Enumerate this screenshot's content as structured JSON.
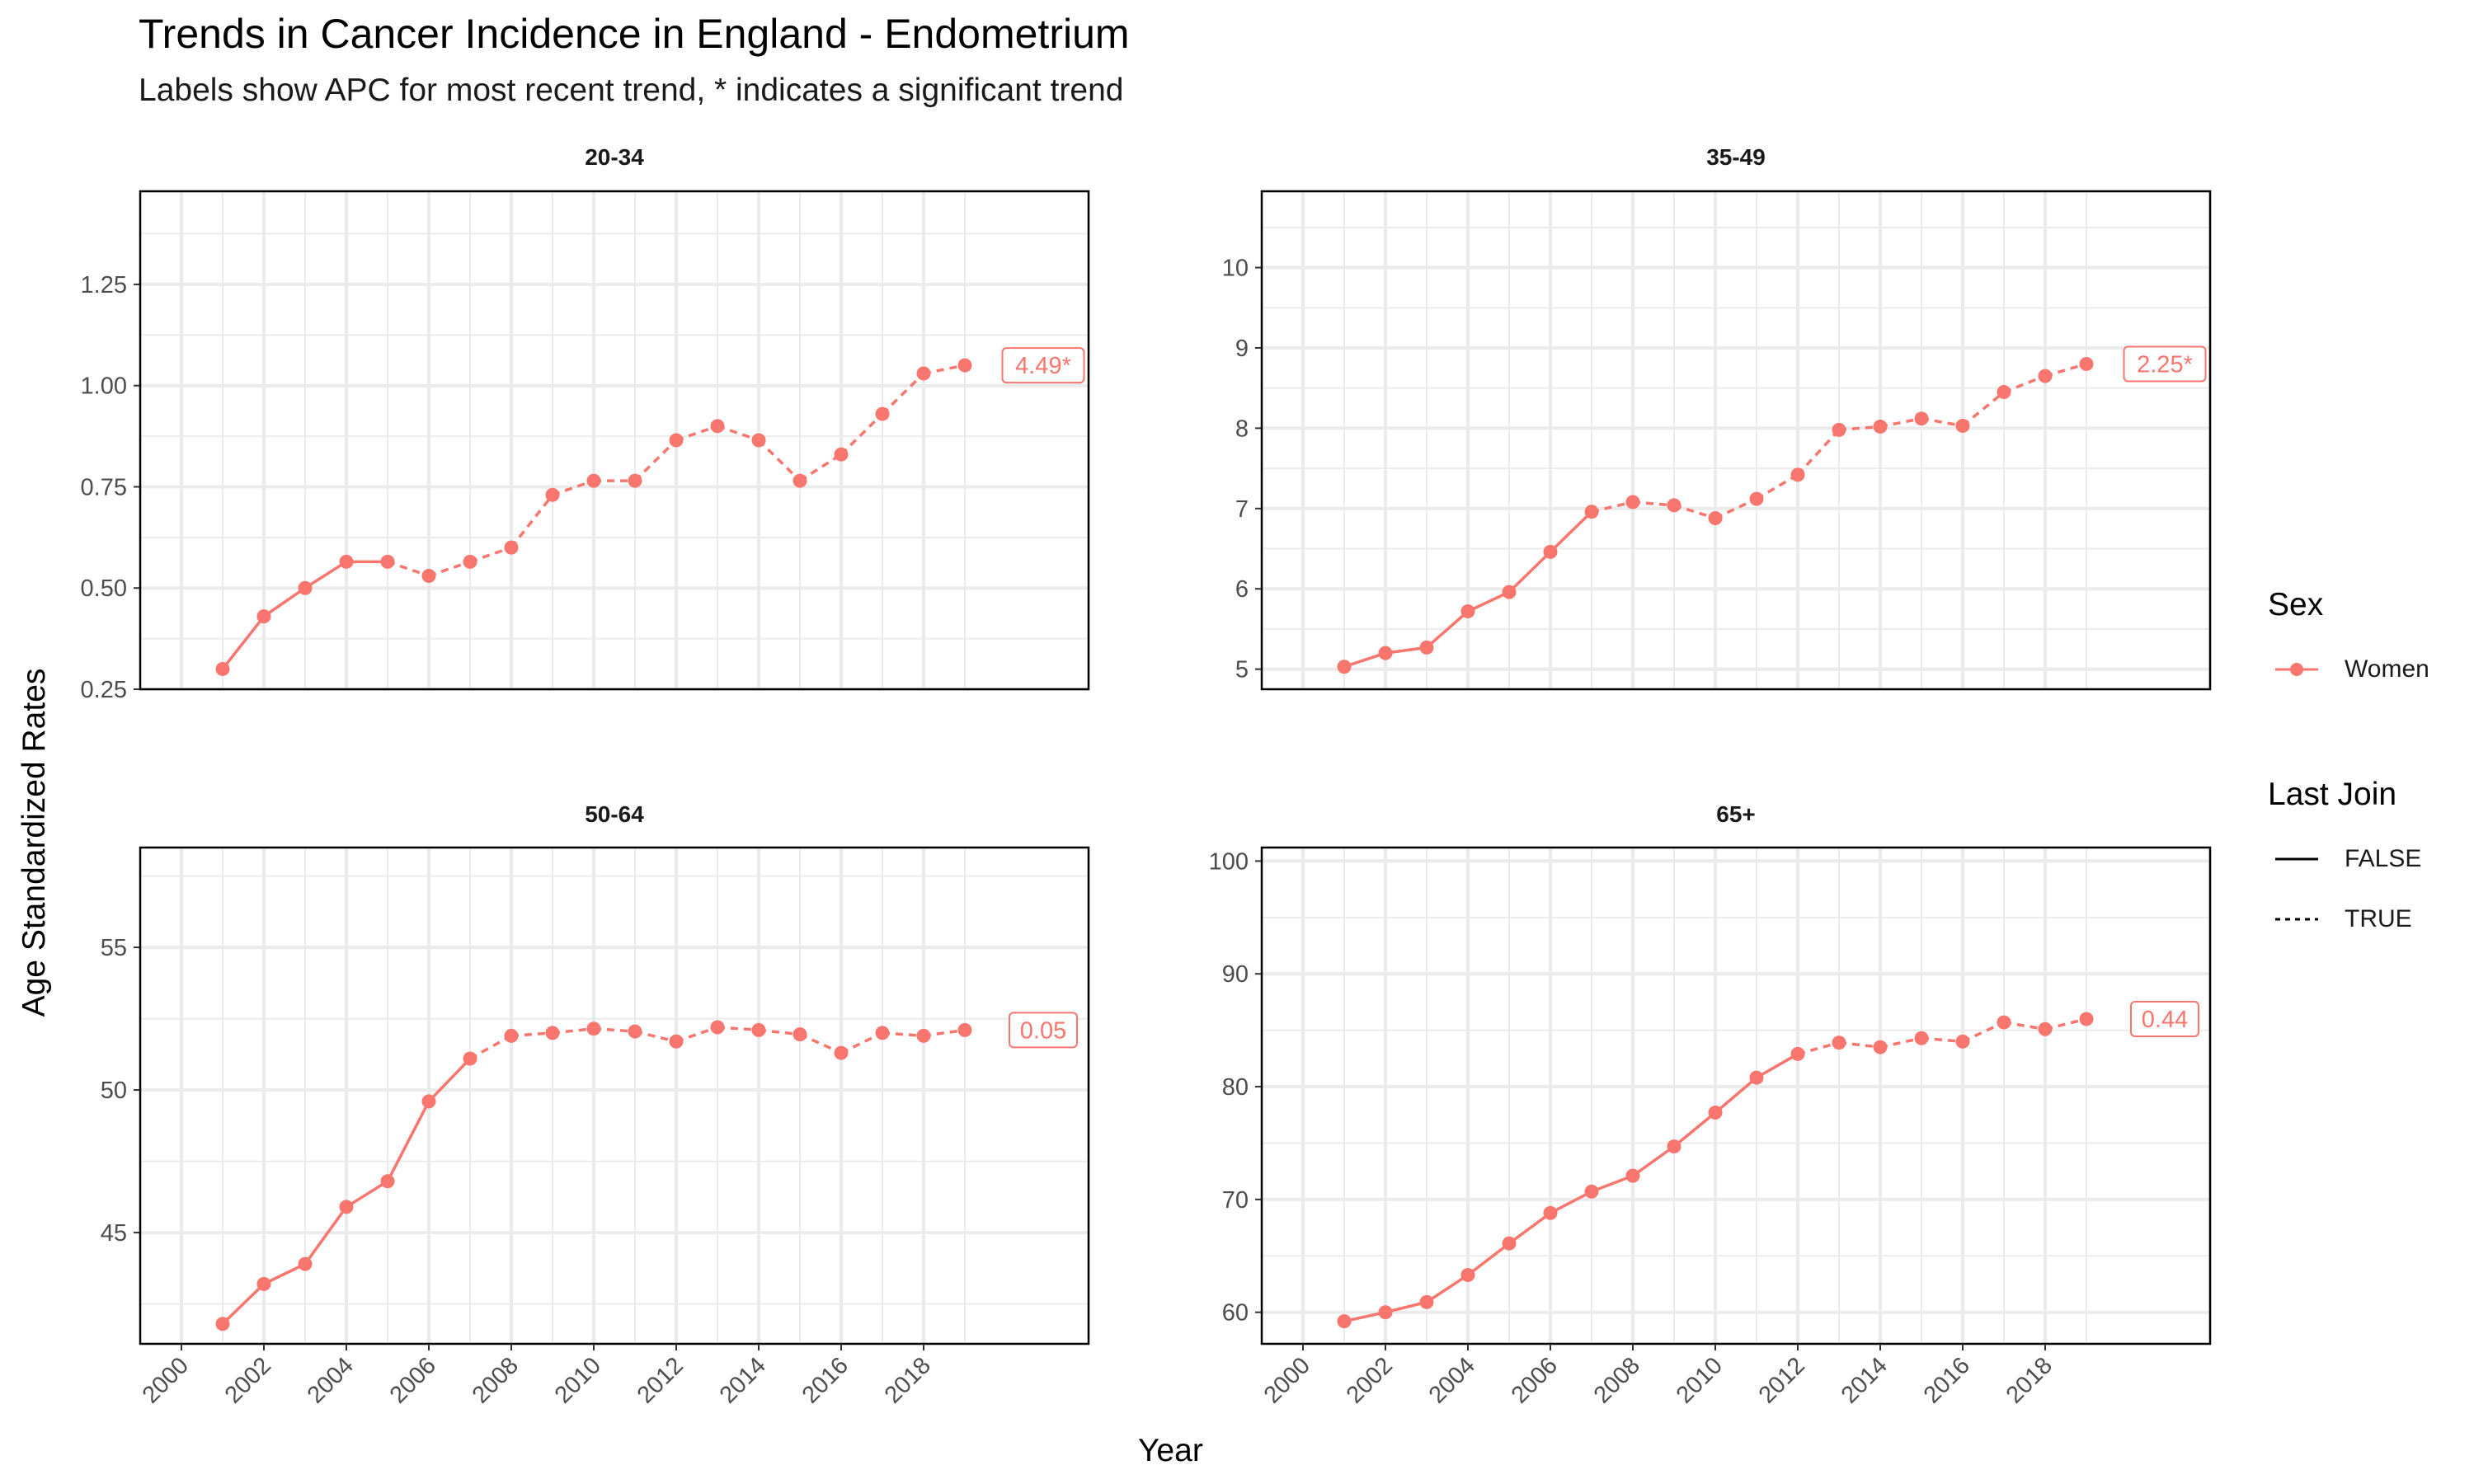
{
  "title": "Trends in Cancer Incidence in England - Endometrium",
  "subtitle": "Labels show APC for most recent trend, * indicates a significant trend",
  "colors": {
    "series": "#F8766D",
    "grid": "#EBEBEB",
    "panel_border": "#000000",
    "tick_text": "#4d4d4d"
  },
  "legend": {
    "sex": {
      "title": "Sex",
      "items": [
        {
          "label": "Women",
          "color": "#F8766D"
        }
      ]
    },
    "last_join": {
      "title": "Last Join",
      "items": [
        {
          "label": "FALSE",
          "linetype": "solid"
        },
        {
          "label": "TRUE",
          "linetype": "dashed"
        }
      ]
    }
  },
  "chart_data": {
    "type": "line",
    "xlabel": "Year",
    "ylabel": "Age Standardized Rates",
    "x_ticks": [
      "2000",
      "2002",
      "2004",
      "2006",
      "2008",
      "2010",
      "2012",
      "2014",
      "2016",
      "2018"
    ],
    "xlim": [
      1999,
      2022
    ],
    "grid": true,
    "legend_position": "right",
    "panels": [
      {
        "name": "20-34",
        "ylim": [
          0.25,
          1.48
        ],
        "y_ticks": [
          "0.25",
          "0.50",
          "0.75",
          "1.00",
          "1.25"
        ],
        "y_tick_values": [
          0.25,
          0.5,
          0.75,
          1.0,
          1.25
        ],
        "x": [
          2001,
          2002,
          2003,
          2004,
          2005,
          2006,
          2007,
          2008,
          2009,
          2010,
          2011,
          2012,
          2013,
          2014,
          2015,
          2016,
          2017,
          2018,
          2019
        ],
        "values": [
          0.3,
          0.43,
          0.5,
          0.565,
          0.565,
          0.53,
          0.565,
          0.6,
          0.73,
          0.765,
          0.765,
          0.865,
          0.9,
          0.865,
          0.765,
          0.83,
          0.93,
          1.03,
          1.05
        ],
        "last_join_start_year": 2005,
        "apc_label": "4.49*"
      },
      {
        "name": "35-49",
        "ylim": [
          4.75,
          10.95
        ],
        "y_ticks": [
          "5",
          "6",
          "7",
          "8",
          "9",
          "10"
        ],
        "y_tick_values": [
          5,
          6,
          7,
          8,
          9,
          10
        ],
        "x": [
          2001,
          2002,
          2003,
          2004,
          2005,
          2006,
          2007,
          2008,
          2009,
          2010,
          2011,
          2012,
          2013,
          2014,
          2015,
          2016,
          2017,
          2018,
          2019
        ],
        "values": [
          5.03,
          5.2,
          5.27,
          5.72,
          5.96,
          6.46,
          6.96,
          7.08,
          7.04,
          6.88,
          7.12,
          7.42,
          7.98,
          8.02,
          8.12,
          8.03,
          8.45,
          8.65,
          8.8
        ],
        "last_join_start_year": 2007,
        "apc_label": "2.25*"
      },
      {
        "name": "50-64",
        "ylim": [
          41.1,
          58.5
        ],
        "y_ticks": [
          "45",
          "50",
          "55"
        ],
        "y_tick_values": [
          45,
          50,
          55
        ],
        "x": [
          2001,
          2002,
          2003,
          2004,
          2005,
          2006,
          2007,
          2008,
          2009,
          2010,
          2011,
          2012,
          2013,
          2014,
          2015,
          2016,
          2017,
          2018,
          2019
        ],
        "values": [
          41.8,
          43.2,
          43.9,
          45.9,
          46.8,
          49.6,
          51.1,
          51.9,
          52.0,
          52.15,
          52.05,
          51.7,
          52.2,
          52.1,
          51.95,
          51.3,
          52.0,
          51.9,
          52.1
        ],
        "last_join_start_year": 2007,
        "apc_label": "0.05"
      },
      {
        "name": "65+",
        "ylim": [
          57.2,
          101.2
        ],
        "y_ticks": [
          "60",
          "70",
          "80",
          "90",
          "100"
        ],
        "y_tick_values": [
          60,
          70,
          80,
          90,
          100
        ],
        "x": [
          2001,
          2002,
          2003,
          2004,
          2005,
          2006,
          2007,
          2008,
          2009,
          2010,
          2011,
          2012,
          2013,
          2014,
          2015,
          2016,
          2017,
          2018,
          2019
        ],
        "values": [
          59.2,
          60.0,
          60.9,
          63.3,
          66.1,
          68.8,
          70.7,
          72.1,
          74.7,
          77.7,
          80.8,
          82.9,
          83.9,
          83.5,
          84.3,
          84.0,
          85.7,
          85.1,
          86.0
        ],
        "last_join_start_year": 2012,
        "apc_label": "0.44"
      }
    ]
  }
}
